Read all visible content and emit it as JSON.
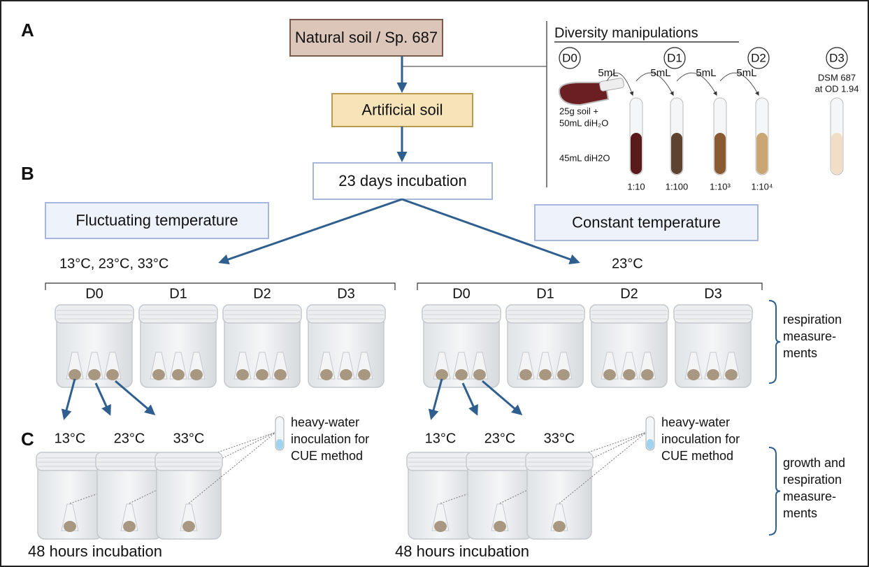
{
  "panels": [
    "A",
    "B",
    "C"
  ],
  "flow": {
    "natural_soil": "Natural soil / Sp. 687",
    "artificial_soil": "Artificial soil",
    "incubation": "23 days incubation"
  },
  "diversity": {
    "title": "Diversity manipulations",
    "levels": [
      "D0",
      "D1",
      "D2",
      "D3"
    ],
    "transfers": [
      "5mL",
      "5mL",
      "5mL",
      "5mL"
    ],
    "soil_note": [
      "25g soil +",
      "50mL diH₂O"
    ],
    "water_note": "45mL diH2O",
    "dilutions": [
      "1:10",
      "1:100",
      "1:10³",
      "1:10⁴"
    ],
    "d3_note": [
      "DSM 687",
      "at OD 1.94"
    ]
  },
  "treatments": [
    {
      "title": "Fluctuating temperature",
      "temps": "13°C, 23°C, 33°C",
      "jars": [
        "D0",
        "D1",
        "D2",
        "D3"
      ],
      "sub_temps": [
        "13°C",
        "23°C",
        "33°C"
      ],
      "inoculation": [
        "heavy-water",
        "inoculation for",
        "CUE method"
      ],
      "incubation": "48 hours incubation"
    },
    {
      "title": "Constant temperature",
      "temps": "23°C",
      "jars": [
        "D0",
        "D1",
        "D2",
        "D3"
      ],
      "sub_temps": [
        "13°C",
        "23°C",
        "33°C"
      ],
      "inoculation": [
        "heavy-water",
        "inoculation for",
        "CUE method"
      ],
      "incubation": "48 hours incubation"
    }
  ],
  "measurements": {
    "respiration": [
      "respiration",
      "measure-",
      "ments"
    ],
    "growth": [
      "growth and",
      "respiration",
      "measure-",
      "ments"
    ]
  }
}
